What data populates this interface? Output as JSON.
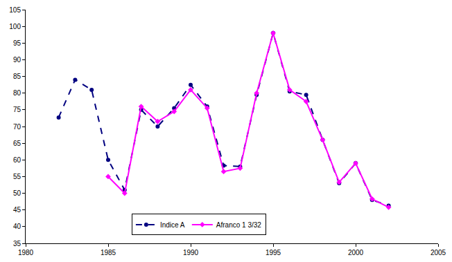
{
  "chart_data": {
    "type": "line",
    "x": [
      1982,
      1983,
      1984,
      1985,
      1986,
      1987,
      1988,
      1989,
      1990,
      1991,
      1992,
      1993,
      1994,
      1995,
      1996,
      1997,
      1998,
      1999,
      2000,
      2001,
      2002
    ],
    "series": [
      {
        "name": "Indice A",
        "color": "#000080",
        "marker": "circle",
        "line_style": "dash",
        "values": [
          72.7,
          84,
          81,
          60,
          51,
          75,
          70,
          75.5,
          82.5,
          76,
          58.3,
          58,
          79.5,
          98,
          80.5,
          79.5,
          66,
          53,
          59,
          48,
          46.3
        ]
      },
      {
        "name": "Afranco 1 3/32",
        "color": "#ff00ff",
        "marker": "diamond",
        "line_style": "solid",
        "values": [
          null,
          null,
          null,
          55,
          50,
          76,
          71.5,
          74.5,
          81,
          75.5,
          56.5,
          57.5,
          80,
          98,
          81,
          77.5,
          66,
          53.3,
          59,
          48.3,
          45.8
        ]
      }
    ],
    "xlim": [
      1980,
      2005
    ],
    "xticks": [
      1980,
      1985,
      1990,
      1995,
      2000,
      2005
    ],
    "ylim": [
      35,
      105
    ],
    "yticks": [
      35,
      40,
      45,
      50,
      55,
      60,
      65,
      70,
      75,
      80,
      85,
      90,
      95,
      100,
      105
    ],
    "grid": false,
    "legend": "bottom"
  }
}
